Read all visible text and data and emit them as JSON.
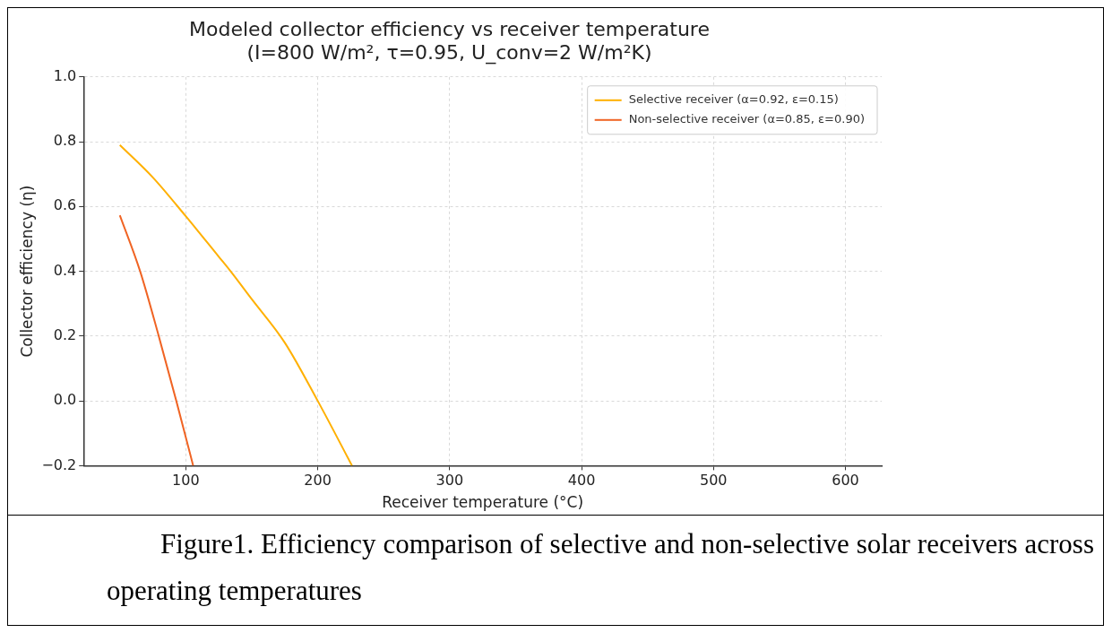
{
  "chart_data": {
    "type": "line",
    "title": "Modeled collector efficiency vs receiver temperature",
    "subtitle": "(I=800 W/m², τ=0.95, U_conv=2 W/m²K)",
    "xlabel": "Receiver temperature (°C)",
    "ylabel": "Collector efficiency (η)",
    "series": [
      {
        "name": "Selective receiver (α=0.92, ε=0.15)",
        "color": "#ffb000",
        "x": [
          50,
          75,
          100,
          125,
          134,
          150,
          175,
          200,
          226
        ],
        "values": [
          0.79,
          0.69,
          0.57,
          0.445,
          0.4,
          0.314,
          0.18,
          0.0,
          -0.2
        ]
      },
      {
        "name": "Non-selective receiver (α=0.85, ε=0.90)",
        "color": "#f06424",
        "x": [
          50,
          65.4,
          79.5,
          92.8,
          105.6
        ],
        "values": [
          0.573,
          0.4,
          0.2,
          0.0,
          -0.2
        ]
      }
    ],
    "xlim": [
      22.5,
      627.5
    ],
    "xticks": [
      100,
      200,
      300,
      400,
      500,
      600
    ],
    "ylim": [
      -0.2,
      1.0
    ],
    "yticks": [
      {
        "value": -0.2,
        "label": "−0.2"
      },
      {
        "value": 0,
        "label": "0.0"
      },
      0.2,
      0.4,
      0.6,
      0.8,
      {
        "value": 1,
        "label": "1.0"
      }
    ],
    "grid": true,
    "legend": "top right",
    "line_style": "solid",
    "marker": "none",
    "annotations": [
      "Figure1. Efficiency comparison of selective and non-selective solar receivers across operating temperatures"
    ]
  }
}
